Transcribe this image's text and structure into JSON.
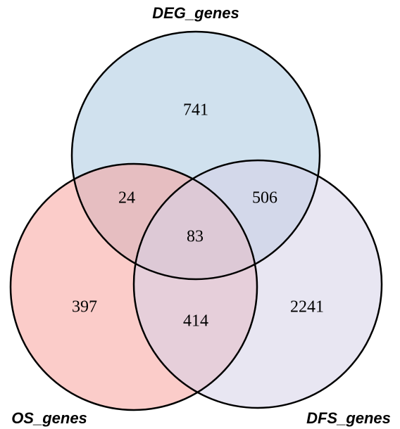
{
  "chart_data": {
    "type": "venn",
    "sets": [
      {
        "name": "DEG_genes",
        "color": "#a9c9e0"
      },
      {
        "name": "OS_genes",
        "color": "#f7a29c"
      },
      {
        "name": "DFS_genes",
        "color": "#d6d2e8"
      }
    ],
    "regions": [
      {
        "value": 741
      },
      {
        "value": 24
      },
      {
        "value": 506
      },
      {
        "value": 83
      },
      {
        "value": 397
      },
      {
        "value": 414
      },
      {
        "value": 2241
      }
    ]
  }
}
